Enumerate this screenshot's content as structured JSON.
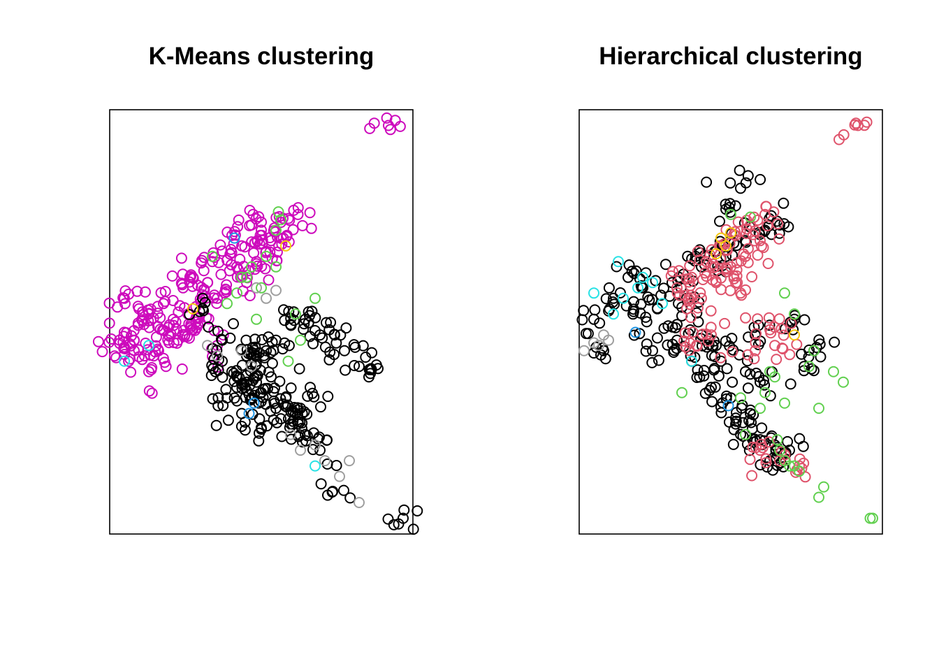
{
  "chart_data": [
    {
      "type": "scatter",
      "title": "K-Means clustering",
      "xlabel": "",
      "ylabel": "",
      "axes_shown": false,
      "grid": false,
      "xlim": [
        -2.5,
        3.7
      ],
      "ylim": [
        -3.9,
        4.2
      ],
      "marker": "open-circle",
      "series": [
        {
          "name": "cluster-magenta",
          "color": "#CD0BBC",
          "cloud": true,
          "x": [
            3.2,
            1.35,
            1.0,
            -2.2,
            -1.8,
            -2.0,
            -1.7,
            -1.4,
            -1.2,
            -1.0,
            -0.8,
            -0.6,
            -0.4,
            -0.2,
            0.0,
            0.2,
            0.4,
            0.6,
            0.8,
            -1.5,
            -1.1,
            -0.7,
            -0.3,
            0.1,
            0.5,
            -1.9,
            -1.6,
            -1.3,
            -0.9,
            -0.5,
            -1.7,
            -2.3,
            -2.0,
            -2.4,
            -0.8,
            -0.3,
            0.3,
            0.7,
            1.05
          ],
          "y": [
            3.9,
            2.2,
            2.05,
            0.6,
            0.1,
            -0.2,
            0.3,
            0.5,
            0.2,
            0.8,
            1.0,
            0.6,
            1.3,
            1.5,
            1.8,
            1.6,
            2.0,
            1.9,
            1.7,
            -0.4,
            -0.2,
            0.1,
            0.6,
            1.2,
            1.3,
            0.4,
            -0.5,
            -0.1,
            0.3,
            0.9,
            -0.8,
            -0.2,
            -0.4,
            -0.5,
            0.0,
            -0.3,
            0.9,
            1.5,
            1.75
          ]
        },
        {
          "name": "cluster-black",
          "color": "#000000",
          "cloud": true,
          "x": [
            3.5,
            2.05,
            1.8,
            1.5,
            1.2,
            0.9,
            0.6,
            0.3,
            0.0,
            -0.2,
            0.5,
            0.8,
            1.1,
            1.6,
            1.3,
            1.0,
            0.6,
            0.2,
            -0.1,
            0.4,
            0.7,
            1.4,
            0.1,
            0.9,
            2.6,
            2.8,
            1.8,
            1.2,
            1.5,
            -0.6,
            -0.2,
            0.5,
            0.3,
            2.3,
            2.1
          ],
          "y": [
            -3.6,
            -3.1,
            -2.3,
            -2.0,
            -1.8,
            -1.5,
            -1.2,
            -1.0,
            -0.8,
            -0.6,
            -0.5,
            -0.9,
            -1.3,
            -1.1,
            -1.6,
            -1.7,
            -1.9,
            -1.6,
            -1.3,
            -0.7,
            -0.4,
            -1.5,
            -1.1,
            -0.2,
            -0.7,
            -0.9,
            -0.1,
            0.1,
            0.2,
            0.4,
            -0.2,
            -1.0,
            -0.5,
            -0.4,
            -0.1
          ]
        },
        {
          "name": "cluster-green",
          "color": "#61D04F",
          "cloud": false,
          "x": [
            0.9,
            1.0,
            0.95,
            -0.4,
            0.2,
            1.3,
            1.7,
            1.4,
            0.5,
            0.3,
            0.1,
            -0.1,
            0.4,
            0.7,
            0.9,
            1.15,
            0.6
          ],
          "y": [
            1.9,
            2.1,
            2.25,
            1.4,
            1.0,
            0.3,
            0.6,
            -0.2,
            0.2,
            1.0,
            0.7,
            0.5,
            1.2,
            1.4,
            1.2,
            -0.6,
            0.8
          ]
        },
        {
          "name": "cluster-gray",
          "color": "#9E9E9E",
          "cloud": false,
          "x": [
            2.6,
            2.4,
            0.7,
            0.5,
            0.9,
            0.2,
            -0.3,
            -0.5,
            1.2,
            1.4,
            1.9,
            2.2,
            0.4,
            1.7
          ],
          "y": [
            -3.3,
            -2.5,
            0.6,
            0.8,
            0.75,
            -0.4,
            -0.5,
            -0.3,
            -2.0,
            -2.3,
            -2.5,
            -2.8,
            -0.7,
            -2.2
          ]
        },
        {
          "name": "cluster-cyan",
          "color": "#28E2E5",
          "cloud": false,
          "x": [
            1.7,
            -2.2,
            -1.7
          ],
          "y": [
            -2.6,
            -0.6,
            -0.3
          ]
        },
        {
          "name": "cluster-blue",
          "color": "#2297E6",
          "cloud": false,
          "x": [
            0.45,
            0.35,
            0.05
          ],
          "y": [
            -1.4,
            -1.6,
            1.75
          ]
        },
        {
          "name": "cluster-orange",
          "color": "#F5C710",
          "cloud": false,
          "x": [
            1.1,
            -0.8
          ],
          "y": [
            1.6,
            0.4
          ]
        }
      ]
    },
    {
      "type": "scatter",
      "title": "Hierarchical clustering",
      "xlabel": "",
      "ylabel": "",
      "axes_shown": false,
      "grid": false,
      "xlim": [
        -2.5,
        3.7
      ],
      "ylim": [
        -3.9,
        4.2
      ],
      "marker": "open-circle",
      "series": [
        {
          "name": "cluster-black",
          "color": "#000000",
          "cloud": true,
          "x": [
            0.8,
            0.5,
            -2.2,
            -1.8,
            -1.5,
            -1.2,
            -0.9,
            -0.6,
            -0.3,
            0.0,
            0.3,
            -1.0,
            -0.5,
            0.0,
            0.4,
            0.9,
            1.2,
            0.6,
            0.2,
            -0.2,
            0.5,
            0.9,
            1.3,
            1.6,
            0.8,
            1.2,
            1.5,
            2.3,
            2.1,
            1.8,
            1.4,
            1.0,
            0.7,
            0.3,
            -0.5,
            -1.4,
            -2.0,
            1.1,
            1.9
          ],
          "y": [
            2.7,
            2.3,
            0.2,
            0.6,
            1.0,
            0.8,
            0.4,
            0.9,
            0.6,
            1.2,
            1.5,
            -0.4,
            -0.2,
            -0.1,
            -0.6,
            -0.8,
            -1.0,
            -1.3,
            -1.1,
            -0.6,
            1.4,
            1.7,
            1.9,
            2.0,
            -2.0,
            -2.1,
            -2.2,
            -0.4,
            -0.7,
            -2.3,
            -2.5,
            -1.6,
            -1.8,
            -0.3,
            0.1,
            0.3,
            -0.4,
            -0.1,
            0.2
          ]
        },
        {
          "name": "cluster-red",
          "color": "#DF536B",
          "cloud": true,
          "x": [
            3.2,
            1.3,
            1.0,
            0.7,
            0.4,
            0.1,
            -0.2,
            -0.5,
            0.9,
            0.6,
            0.3,
            0.0,
            -0.3,
            1.2,
            0.8,
            1.5,
            1.1,
            1.4,
            0.2,
            -0.1,
            1.6,
            2.0,
            1.2
          ],
          "y": [
            3.9,
            2.2,
            2.0,
            1.8,
            1.6,
            1.3,
            1.0,
            0.8,
            1.4,
            1.2,
            0.9,
            0.6,
            0.4,
            1.7,
            0.7,
            -0.3,
            -0.4,
            0.0,
            -0.1,
            -0.3,
            -2.5,
            -2.6,
            -2.3
          ]
        },
        {
          "name": "cluster-green",
          "color": "#61D04F",
          "cloud": false,
          "x": [
            3.5,
            3.45,
            2.5,
            2.4,
            2.0,
            1.9,
            1.8,
            1.7,
            1.6,
            1.55,
            1.7,
            1.9,
            2.2,
            2.7,
            2.9,
            2.4,
            2.3,
            1.3,
            1.2,
            0.9,
            -0.4,
            1.7,
            1.4,
            1.5,
            0.8,
            1.0,
            0.6
          ],
          "y": [
            -3.6,
            -3.6,
            -3.0,
            -3.2,
            -2.7,
            -2.6,
            -2.6,
            -2.5,
            -2.3,
            -2.1,
            0.7,
            0.3,
            -0.7,
            -0.8,
            -1.0,
            -1.5,
            -0.4,
            -1.2,
            -1.5,
            -2.0,
            -1.2,
            -1.4,
            -0.8,
            -0.9,
            -1.3,
            2.15,
            2.2
          ]
        },
        {
          "name": "cluster-cyan",
          "color": "#28E2E5",
          "cloud": false,
          "x": [
            -2.2,
            -1.7,
            -1.3,
            -1.0,
            -1.6,
            -1.8,
            -0.8,
            -1.2,
            -0.2
          ],
          "y": [
            0.7,
            1.3,
            0.8,
            0.9,
            0.6,
            0.3,
            0.5,
            1.0,
            -0.6
          ]
        },
        {
          "name": "cluster-gray",
          "color": "#9E9E9E",
          "cloud": false,
          "x": [
            -2.4,
            -2.2,
            -2.0,
            -2.1,
            -1.9
          ],
          "y": [
            -0.4,
            -0.25,
            -0.1,
            -0.3,
            -0.2
          ]
        },
        {
          "name": "cluster-orange",
          "color": "#F5C710",
          "cloud": false,
          "x": [
            0.6,
            0.4,
            0.5,
            0.3,
            1.9
          ],
          "y": [
            1.85,
            1.75,
            1.6,
            1.45,
            -0.1
          ]
        },
        {
          "name": "cluster-blue",
          "color": "#2297E6",
          "cloud": false,
          "x": [
            -1.35,
            0.55
          ],
          "y": [
            -0.05,
            -1.45
          ]
        }
      ]
    }
  ]
}
